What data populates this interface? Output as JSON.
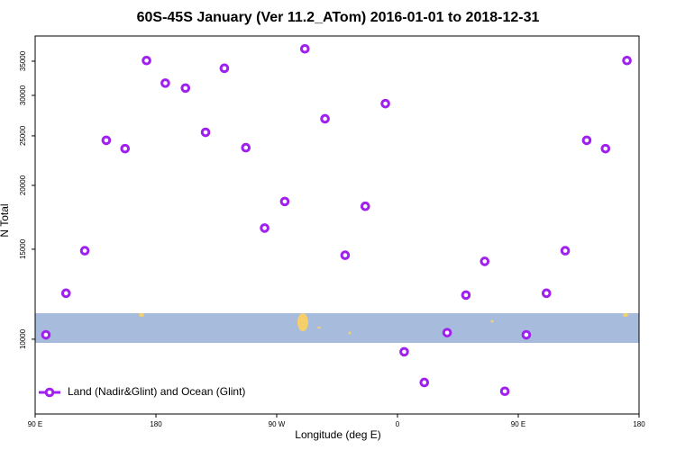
{
  "chart_data": {
    "type": "scatter",
    "title": "60S-45S January (Ver 11.2_ATom)   2016-01-01 to 2018-12-31",
    "x_label": "Longitude (deg E)",
    "y_label": "N Total",
    "x": [
      98,
      113,
      127,
      143,
      157,
      173,
      187,
      202,
      217,
      231,
      247,
      261,
      276,
      291,
      306,
      321,
      336,
      351,
      365,
      380,
      397,
      411,
      425,
      440,
      456,
      471,
      485,
      501,
      515,
      531
    ],
    "series": [
      {
        "name": "Land (Nadir&Glint) and Ocean (Glint)",
        "color": "#a020f0",
        "values": [
          10200,
          12300,
          14900,
          24500,
          23600,
          35100,
          31700,
          31000,
          25400,
          33900,
          23700,
          16500,
          18600,
          37000,
          27000,
          14600,
          18200,
          28900,
          9450,
          8230,
          10300,
          12200,
          14200,
          7910,
          10200,
          12300,
          14900,
          24500,
          23600,
          35100
        ]
      }
    ],
    "xlim": [
      90,
      540
    ],
    "xticks": [
      {
        "value": 90,
        "label": "90 E"
      },
      {
        "value": 180,
        "label": "180"
      },
      {
        "value": 270,
        "label": "90 W"
      },
      {
        "value": 360,
        "label": "0"
      },
      {
        "value": 450,
        "label": "90 E"
      },
      {
        "value": 540,
        "label": "180"
      }
    ],
    "ylim": [
      7140,
      39200
    ],
    "yticks": [
      10000,
      15000,
      20000,
      25000,
      30000,
      35000
    ],
    "log_y": true,
    "legend": "lower left"
  }
}
